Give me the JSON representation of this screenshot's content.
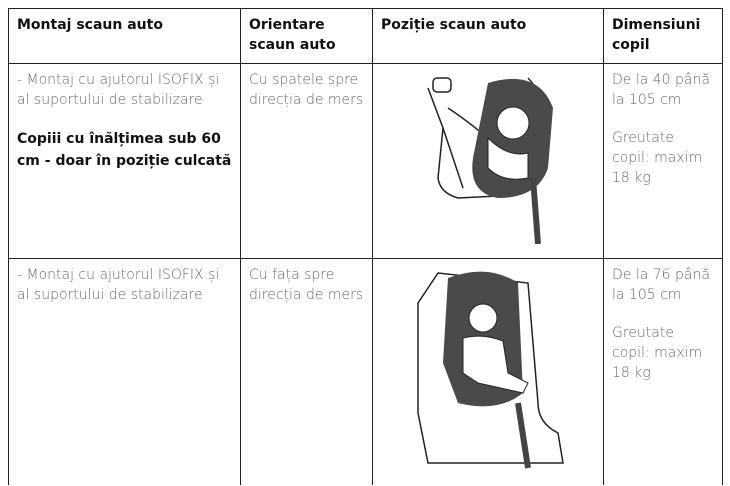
{
  "table": {
    "header": [
      "Montaj scaun auto",
      "Orientare scaun auto",
      "Poziție scaun auto",
      "Dimensiuni copil"
    ],
    "rows": [
      {
        "mounting": "- Montaj cu ajutorul ISOFIX și al suportului de stabilizare",
        "note": "Copiii cu înălțimea sub 60 cm - doar în poziție culcată",
        "orientation": "Cu spatele spre direcția de mers",
        "size": [
          "De la 40 până la 105 cm",
          "Greutate copil: maxim 18 kg"
        ]
      },
      {
        "mounting": "- Montaj cu ajutorul ISOFIX și al suportului de stabilizare",
        "orientation": "Cu fața spre direcția de mers",
        "size": [
          "De la 76 până la 105 cm",
          "Greutate copil: maxim 18 kg"
        ]
      }
    ]
  }
}
